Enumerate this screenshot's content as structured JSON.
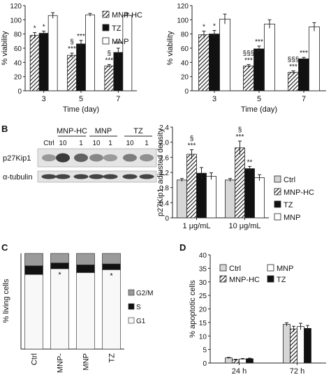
{
  "colors": {
    "ctrl": "#d6d6d6",
    "mnp_hc": "hatch",
    "tz": "#111111",
    "mnp": "#ffffff",
    "stack_g1": "#f8f8f8",
    "stack_s": "#111111",
    "stack_g2m": "#9a9a9a"
  },
  "panel_letters": {
    "b": "B",
    "c": "C",
    "d": "D"
  },
  "western_blot": {
    "lane_groups": [
      "MNP-HC",
      "MNP",
      "TZ"
    ],
    "ctrl_label": "Ctrl",
    "doses": [
      "10",
      "1",
      "10",
      "1",
      "10",
      "1"
    ],
    "proteins": [
      "p27Kip1",
      "α-tubulin"
    ],
    "p27_intensity": [
      0.35,
      0.85,
      0.65,
      0.45,
      0.35,
      0.5,
      0.4
    ],
    "tubulin_intensity": [
      0.8,
      0.8,
      0.8,
      0.8,
      0.8,
      0.8,
      0.8
    ]
  },
  "chart_data": [
    {
      "id": "A-left",
      "type": "bar",
      "categories": [
        "3",
        "5",
        "7"
      ],
      "xlabel": "Time (day)",
      "ylabel": "% viability",
      "ylim": [
        0,
        120
      ],
      "yticks": [
        0,
        20,
        40,
        60,
        80,
        100,
        120
      ],
      "series": [
        {
          "name": "MNP-HC",
          "values": [
            78,
            50,
            35
          ],
          "errors": [
            4,
            3,
            2
          ]
        },
        {
          "name": "TZ",
          "values": [
            81,
            66,
            54
          ],
          "errors": [
            3,
            5,
            6
          ]
        },
        {
          "name": "MNP",
          "values": [
            106,
            107,
            106
          ],
          "errors": [
            4,
            2,
            3
          ]
        }
      ],
      "annotations": [
        [
          "*"
        ],
        [
          "*"
        ],
        null,
        [
          "§",
          "***"
        ],
        [
          "***"
        ],
        null,
        [
          "§",
          "***"
        ],
        [
          "***"
        ],
        null
      ],
      "legend": [
        "MNP-HC",
        "TZ",
        "MNP"
      ],
      "legend_position": "top-right"
    },
    {
      "id": "A-right",
      "type": "bar",
      "categories": [
        "3",
        "5",
        "7"
      ],
      "xlabel": "Time (day)",
      "ylabel": "% viability",
      "ylim": [
        0,
        120
      ],
      "yticks": [
        0,
        20,
        40,
        60,
        80,
        100,
        120
      ],
      "series": [
        {
          "name": "MNP-HC",
          "values": [
            79,
            35,
            26
          ],
          "errors": [
            5,
            2,
            2
          ]
        },
        {
          "name": "TZ",
          "values": [
            80,
            59,
            45
          ],
          "errors": [
            5,
            4,
            2
          ]
        },
        {
          "name": "MNP",
          "values": [
            101,
            94,
            90
          ],
          "errors": [
            7,
            6,
            6
          ]
        }
      ],
      "annotations": [
        [
          "*"
        ],
        [
          "*"
        ],
        null,
        [
          "§§§",
          "***"
        ],
        [
          "***"
        ],
        null,
        [
          "§§§",
          "***"
        ],
        [
          "***"
        ],
        null
      ]
    },
    {
      "id": "B-chart",
      "type": "bar",
      "categories": [
        "1 μg/mL",
        "10 μg/mL"
      ],
      "ylabel": "p27Kip1, adjusted density",
      "ylim": [
        0,
        2.4
      ],
      "yticks": [
        "0",
        "0.4",
        "0.8",
        "1.2",
        "1.6",
        "2.0",
        "2.4"
      ],
      "series": [
        {
          "name": "Ctrl",
          "values": [
            1.0,
            1.0
          ],
          "errors": [
            0.04,
            0.04
          ]
        },
        {
          "name": "MNP-HC",
          "values": [
            1.68,
            1.85
          ],
          "errors": [
            0.12,
            0.18
          ]
        },
        {
          "name": "TZ",
          "values": [
            1.18,
            1.3
          ],
          "errors": [
            0.15,
            0.06
          ]
        },
        {
          "name": "MNP",
          "values": [
            1.1,
            1.06
          ],
          "errors": [
            0.09,
            0.08
          ]
        }
      ],
      "annotations": [
        null,
        [
          "§",
          "***"
        ],
        null,
        null,
        null,
        [
          "§",
          "***"
        ],
        [
          "**"
        ],
        null
      ],
      "legend": [
        "Ctrl",
        "MNP-HC",
        "TZ",
        "MNP"
      ],
      "legend_position": "right"
    },
    {
      "id": "C",
      "type": "bar",
      "stacked": true,
      "categories": [
        "Ctrl",
        "MNP-",
        "MNP",
        "TZ"
      ],
      "ylabel": "% living cells",
      "ylim": [
        0,
        100
      ],
      "series": [
        {
          "name": "G1",
          "values": [
            78,
            84,
            80,
            83
          ]
        },
        {
          "name": "S",
          "values": [
            9,
            6,
            8,
            6
          ]
        },
        {
          "name": "G2/M",
          "values": [
            13,
            10,
            12,
            11
          ]
        }
      ],
      "annotations": [
        null,
        "*",
        null,
        "*"
      ],
      "legend": [
        "G2/M",
        "S",
        "G1"
      ],
      "legend_position": "right"
    },
    {
      "id": "D",
      "type": "bar",
      "categories": [
        "24 h",
        "72 h"
      ],
      "ylabel": "% apoptotic cells",
      "ylim": [
        0,
        40
      ],
      "yticks": [
        0,
        5,
        10,
        15,
        20,
        25,
        30,
        35,
        40
      ],
      "series": [
        {
          "name": "Ctrl",
          "values": [
            1.9,
            14.3
          ],
          "errors": [
            0.2,
            0.6
          ]
        },
        {
          "name": "MNP-HC",
          "values": [
            1.2,
            12.6
          ],
          "errors": [
            0.2,
            1.0
          ]
        },
        {
          "name": "MNP",
          "values": [
            1.5,
            13.5
          ],
          "errors": [
            0.2,
            1.2
          ]
        },
        {
          "name": "TZ",
          "values": [
            1.6,
            12.8
          ],
          "errors": [
            0.2,
            1.1
          ]
        }
      ],
      "legend": [
        "Ctrl",
        "MNP",
        "MNP-HC",
        "TZ"
      ],
      "legend_position": "top"
    }
  ]
}
